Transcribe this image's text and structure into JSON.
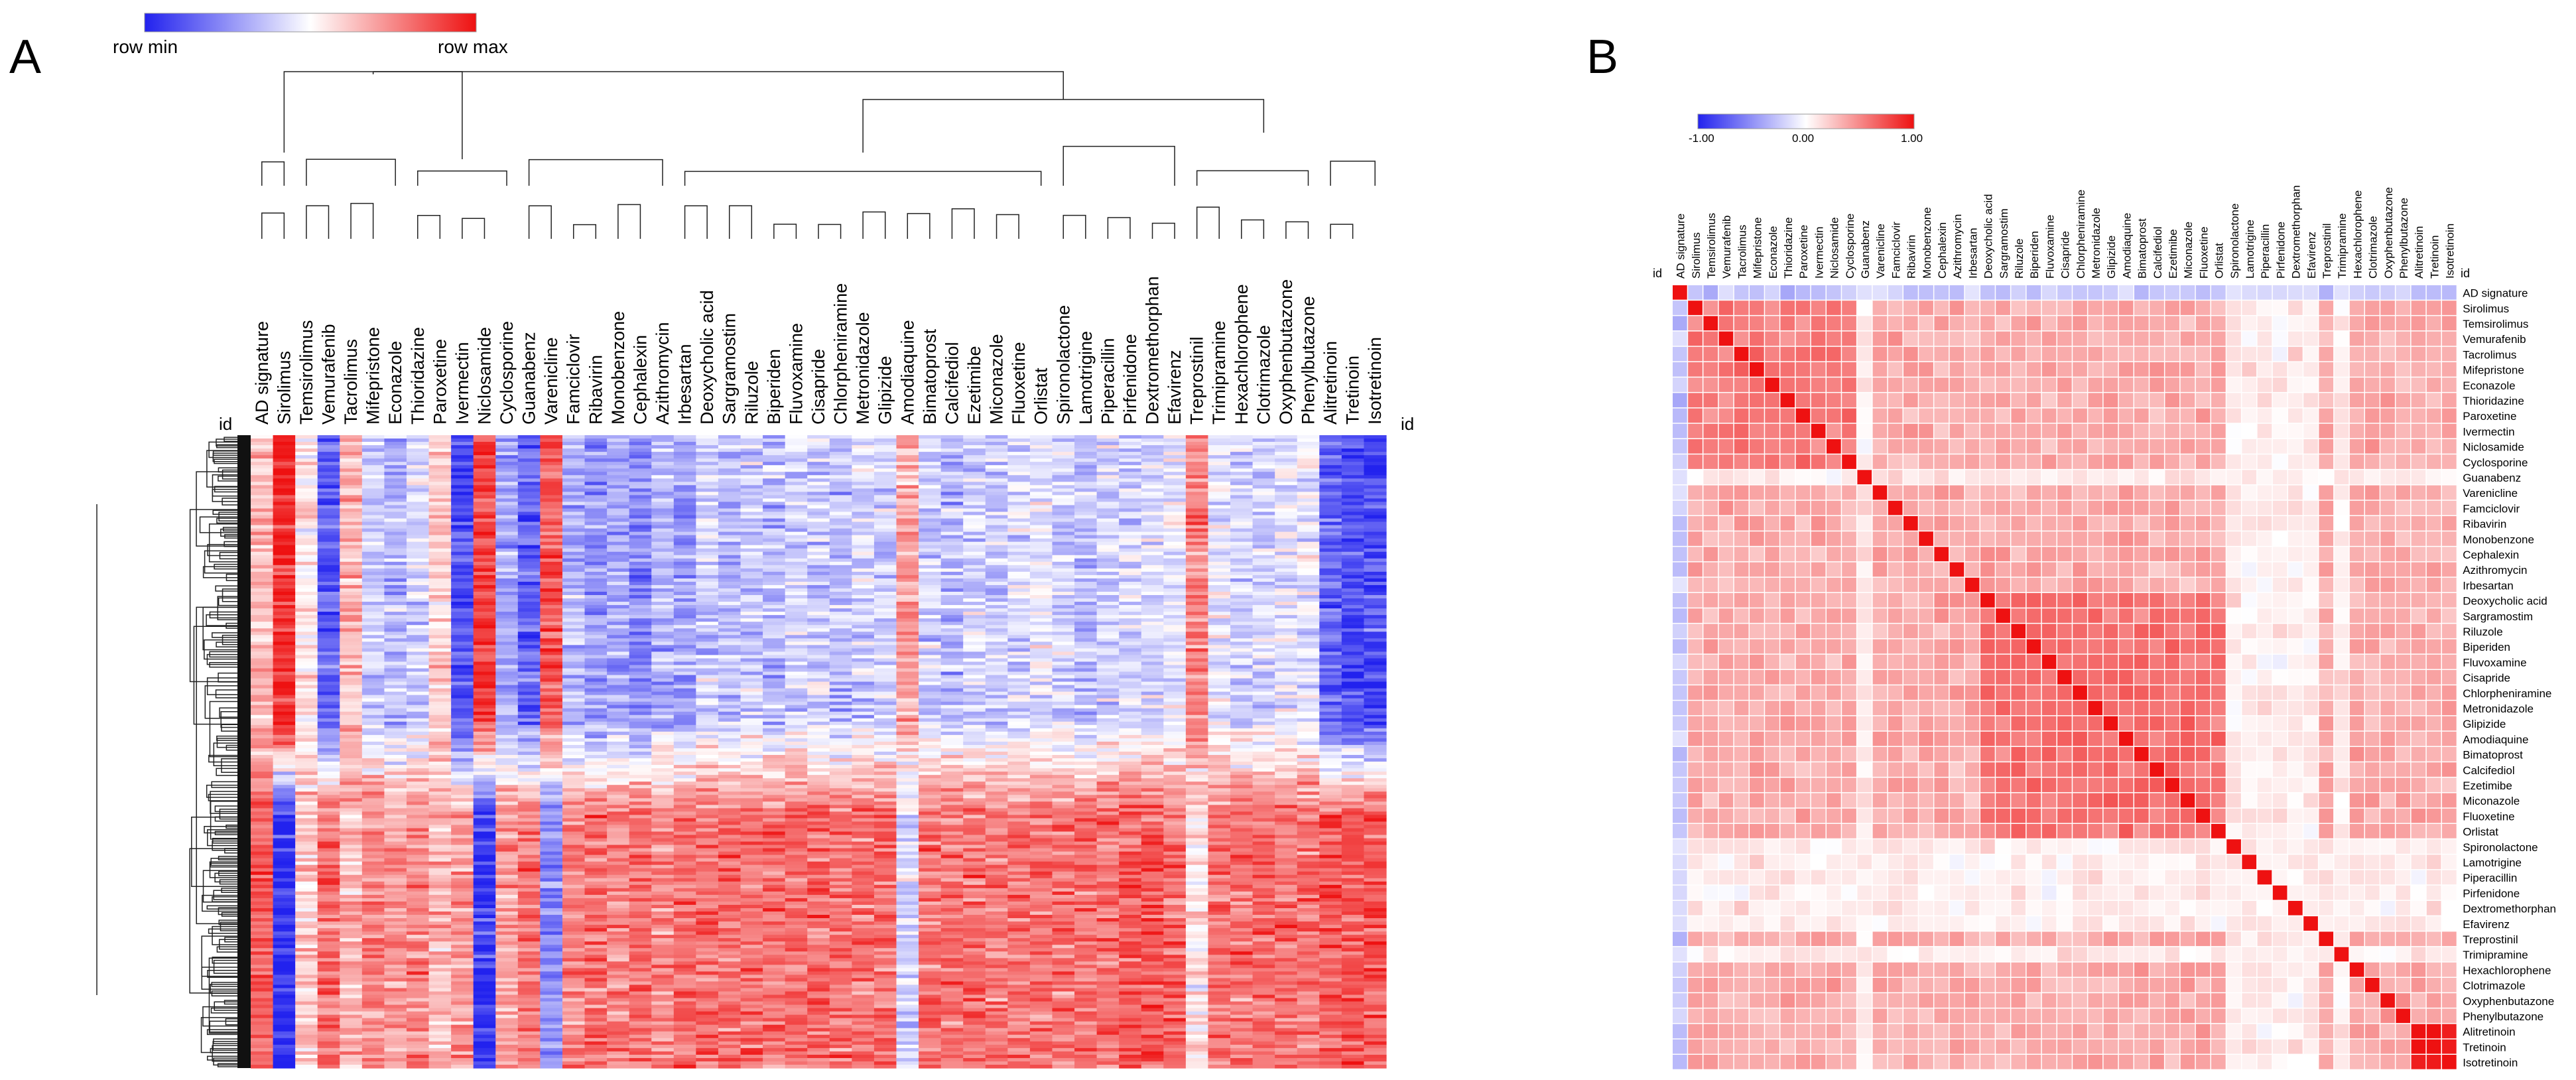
{
  "colors": {
    "min": "#2222ee",
    "mid": "#ffffff",
    "max": "#ee1111"
  },
  "chart_data": [
    {
      "type": "heatmap",
      "panel_label": "A",
      "title": "",
      "legend": {
        "min_label": "row  min",
        "max_label": "row  max"
      },
      "id_label": "id",
      "columns": [
        "AD signature",
        "Sirolimus",
        "Temsirolimus",
        "Vemurafenib",
        "Tacrolimus",
        "Mifepristone",
        "Econazole",
        "Thioridazine",
        "Paroxetine",
        "Ivermectin",
        "Niclosamide",
        "Cyclosporine",
        "Guanabenz",
        "Varenicline",
        "Famciclovir",
        "Ribavirin",
        "Monobenzone",
        "Cephalexin",
        "Azithromycin",
        "Irbesartan",
        "Deoxycholic acid",
        "Sargramostim",
        "Riluzole",
        "Biperiden",
        "Fluvoxamine",
        "Cisapride",
        "Chlorpheniramine",
        "Metronidazole",
        "Glipizide",
        "Amodiaquine",
        "Bimatoprost",
        "Calcifediol",
        "Ezetimibe",
        "Miconazole",
        "Fluoxetine",
        "Orlistat",
        "Spironolactone",
        "Lamotrigine",
        "Piperacillin",
        "Pirfenidone",
        "Dextromethorphan",
        "Efavirenz",
        "Treprostinil",
        "Trimipramine",
        "Hexachlorophene",
        "Clotrimazole",
        "Oxyphenbutazone",
        "Phenylbutazone",
        "Alitretinoin",
        "Tretinoin",
        "Isotretinoin"
      ],
      "row_bias_top": [
        0.3,
        0.9,
        0.1,
        -0.7,
        0.3,
        -0.2,
        -0.3,
        -0.2,
        0.2,
        -0.8,
        0.8,
        -0.4,
        -0.7,
        0.7,
        -0.3,
        -0.5,
        -0.4,
        -0.5,
        -0.3,
        -0.4,
        -0.2,
        -0.3,
        -0.2,
        -0.3,
        -0.2,
        -0.2,
        -0.3,
        -0.2,
        -0.2,
        0.4,
        -0.2,
        -0.3,
        -0.2,
        -0.2,
        -0.2,
        -0.1,
        -0.2,
        -0.3,
        -0.2,
        -0.2,
        -0.2,
        -0.1,
        0.5,
        -0.1,
        -0.2,
        -0.2,
        -0.1,
        -0.1,
        -0.7,
        -0.8,
        -0.8
      ],
      "row_bias_bottom": [
        0.7,
        -0.9,
        0.2,
        0.6,
        0.3,
        0.5,
        0.4,
        0.5,
        0.3,
        0.4,
        -0.9,
        0.4,
        0.6,
        -0.5,
        0.5,
        0.6,
        0.5,
        0.6,
        0.5,
        0.6,
        0.6,
        0.6,
        0.6,
        0.6,
        0.6,
        0.6,
        0.6,
        0.6,
        0.6,
        -0.2,
        0.6,
        0.6,
        0.6,
        0.6,
        0.6,
        0.6,
        0.6,
        0.6,
        0.6,
        0.7,
        0.7,
        0.6,
        0.1,
        0.6,
        0.6,
        0.6,
        0.6,
        0.6,
        0.7,
        0.7,
        0.7
      ]
    },
    {
      "type": "heatmap",
      "panel_label": "B",
      "title": "",
      "legend": {
        "ticks": [
          "-1.00",
          "0.00",
          "1.00"
        ]
      },
      "id_label": "id",
      "value_range": [
        -1.0,
        1.0
      ],
      "labels": [
        "AD signature",
        "Sirolimus",
        "Temsirolimus",
        "Vemurafenib",
        "Tacrolimus",
        "Mifepristone",
        "Econazole",
        "Thioridazine",
        "Paroxetine",
        "Ivermectin",
        "Niclosamide",
        "Cyclosporine",
        "Guanabenz",
        "Varenicline",
        "Famciclovir",
        "Ribavirin",
        "Monobenzone",
        "Cephalexin",
        "Azithromycin",
        "Irbesartan",
        "Deoxycholic acid",
        "Sargramostim",
        "Riluzole",
        "Biperiden",
        "Fluvoxamine",
        "Cisapride",
        "Chlorpheniramine",
        "Metronidazole",
        "Glipizide",
        "Amodiaquine",
        "Bimatoprost",
        "Calcifediol",
        "Ezetimibe",
        "Miconazole",
        "Fluoxetine",
        "Orlistat",
        "Spironolactone",
        "Lamotrigine",
        "Piperacillin",
        "Pirfenidone",
        "Dextromethorphan",
        "Efavirenz",
        "Treprostinil",
        "Trimipramine",
        "Hexachlorophene",
        "Clotrimazole",
        "Oxyphenbutazone",
        "Phenylbutazone",
        "Alitretinoin",
        "Tretinoin",
        "Isotretinoin"
      ],
      "corr_to_ad_signature": [
        1.0,
        -0.35,
        -0.3,
        -0.2,
        -0.25,
        -0.3,
        -0.3,
        -0.3,
        -0.3,
        -0.3,
        -0.35,
        -0.3,
        -0.2,
        -0.2,
        -0.25,
        -0.25,
        -0.25,
        -0.25,
        -0.25,
        -0.25,
        -0.25,
        -0.25,
        -0.25,
        -0.25,
        -0.25,
        -0.25,
        -0.25,
        -0.25,
        -0.25,
        -0.25,
        -0.25,
        -0.25,
        -0.25,
        -0.25,
        -0.25,
        -0.25,
        -0.2,
        -0.2,
        -0.2,
        -0.2,
        -0.2,
        -0.15,
        -0.3,
        -0.2,
        -0.2,
        -0.2,
        -0.2,
        -0.2,
        -0.3,
        -0.3,
        -0.3
      ],
      "cluster_blocks": [
        {
          "from": "Sirolimus",
          "to": "Cyclosporine",
          "corr": 0.55
        },
        {
          "from": "Deoxycholic acid",
          "to": "Orlistat",
          "corr": 0.6
        },
        {
          "from": "Alitretinoin",
          "to": "Isotretinoin",
          "corr": 0.98
        }
      ],
      "background_corr": 0.35,
      "weak_rows": [
        "Guanabenz",
        "Spironolactone",
        "Lamotrigine",
        "Piperacillin",
        "Pirfenidone",
        "Dextromethorphan",
        "Efavirenz",
        "Trimipramine"
      ]
    }
  ]
}
